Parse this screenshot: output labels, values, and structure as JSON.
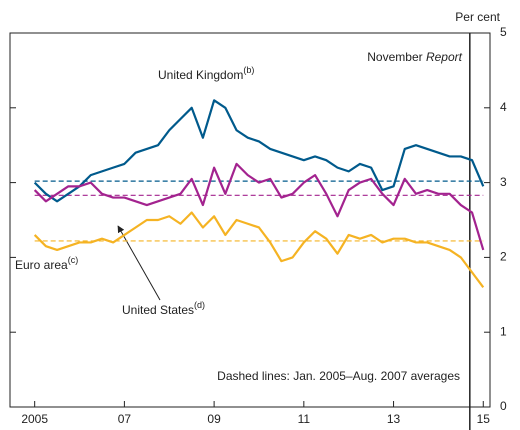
{
  "chart_data": {
    "type": "line",
    "ylabel": "Per cent",
    "annotation_report": {
      "text": "November",
      "italic": "Report",
      "x": 2014.7
    },
    "annotation_dashed": "Dashed lines:  Jan. 2005–Aug. 2007 averages",
    "x": [
      2005.0,
      2005.25,
      2005.5,
      2005.75,
      2006.0,
      2006.25,
      2006.5,
      2006.75,
      2007.0,
      2007.25,
      2007.5,
      2007.75,
      2008.0,
      2008.25,
      2008.5,
      2008.75,
      2009.0,
      2009.25,
      2009.5,
      2009.75,
      2010.0,
      2010.25,
      2010.5,
      2010.75,
      2011.0,
      2011.25,
      2011.5,
      2011.75,
      2012.0,
      2012.25,
      2012.5,
      2012.75,
      2013.0,
      2013.25,
      2013.5,
      2013.75,
      2014.0,
      2014.25,
      2014.5,
      2014.75,
      2015.0
    ],
    "series": [
      {
        "name": "United Kingdom",
        "note": "(b)",
        "color": "#005a8c",
        "average": 3.02,
        "values": [
          3.0,
          2.85,
          2.75,
          2.85,
          2.95,
          3.1,
          3.15,
          3.2,
          3.25,
          3.4,
          3.45,
          3.5,
          3.7,
          3.85,
          4.0,
          3.6,
          4.1,
          4.0,
          3.7,
          3.6,
          3.55,
          3.45,
          3.4,
          3.35,
          3.3,
          3.35,
          3.3,
          3.2,
          3.15,
          3.25,
          3.2,
          2.9,
          2.95,
          3.45,
          3.5,
          3.45,
          3.4,
          3.35,
          3.35,
          3.3,
          2.95
        ]
      },
      {
        "name": "United States",
        "note": "(d)",
        "color": "#a3238f",
        "average": 2.83,
        "values": [
          2.9,
          2.75,
          2.85,
          2.95,
          2.95,
          3.0,
          2.85,
          2.8,
          2.8,
          2.75,
          2.7,
          2.75,
          2.8,
          2.85,
          3.05,
          2.7,
          3.2,
          2.85,
          3.25,
          3.1,
          3.0,
          3.05,
          2.8,
          2.85,
          3.0,
          3.1,
          2.85,
          2.55,
          2.9,
          3.0,
          3.05,
          2.85,
          2.7,
          3.05,
          2.85,
          2.9,
          2.85,
          2.85,
          2.7,
          2.6,
          2.1
        ]
      },
      {
        "name": "Euro area",
        "note": "(c)",
        "color": "#f5b323",
        "average": 2.22,
        "values": [
          2.3,
          2.15,
          2.1,
          2.15,
          2.2,
          2.2,
          2.25,
          2.2,
          2.3,
          2.4,
          2.5,
          2.5,
          2.55,
          2.45,
          2.6,
          2.4,
          2.55,
          2.3,
          2.5,
          2.45,
          2.4,
          2.2,
          1.95,
          2.0,
          2.2,
          2.35,
          2.25,
          2.05,
          2.3,
          2.25,
          2.3,
          2.2,
          2.25,
          2.25,
          2.2,
          2.2,
          2.15,
          2.1,
          2.0,
          1.8,
          1.6
        ]
      }
    ],
    "xlim": [
      2004.45,
      2015.15
    ],
    "xticks": [
      2005,
      {
        "value": 2007,
        "label": "07"
      },
      {
        "value": 2009,
        "label": "09"
      },
      {
        "value": 2011,
        "label": "11"
      },
      {
        "value": 2013,
        "label": "13"
      },
      {
        "value": 2015,
        "label": "15"
      }
    ],
    "ylim": [
      0,
      5
    ],
    "yticks": [
      0,
      1,
      2,
      3,
      4,
      5
    ]
  }
}
